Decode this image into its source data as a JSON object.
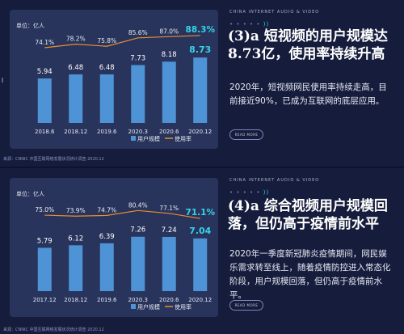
{
  "panels": [
    {
      "tiny_label": "CHINA INTERNET AUDIO & VIDEO",
      "heading": "(3)a 短视频的用户规模达8.73亿，使用率持续升高",
      "description": "2020年，短视频网民使用率持续走高，目前接近90%，已成为互联网的底层应用。",
      "button": "READ MORE",
      "source": "来源：CNNIC 中国互联网络发展状况统计调查 2020.12"
    },
    {
      "tiny_label": "CHINA INTERNET AUDIO & VIDEO",
      "heading": "(4)a 综合视频用户规模回落，但仍高于疫情前水平",
      "description": "2020年一季度新冠肺炎疫情期间，网民娱乐需求转至线上，随着疫情防控进入常态化阶段，用户规模回落，但仍高于疫情前水平。",
      "button": "READ MORE",
      "source": "来源：CNNIC 中国互联网络发展状况统计调查 2020.12"
    }
  ],
  "chart_data": [
    {
      "type": "bar",
      "unit_label": "单位：亿人",
      "categories": [
        "2018.6",
        "2018.12",
        "2019.6",
        "2020.3",
        "2020.6",
        "2020.12"
      ],
      "series": [
        {
          "name": "用户规模",
          "type": "bar",
          "values": [
            5.94,
            6.48,
            6.48,
            7.73,
            8.18,
            8.73
          ],
          "labels": [
            "5.94",
            "6.48",
            "6.48",
            "7.73",
            "8.18",
            "8.73"
          ]
        },
        {
          "name": "使用率",
          "type": "line",
          "values": [
            74.1,
            78.2,
            75.8,
            85.6,
            87.0,
            88.3
          ],
          "labels": [
            "74.1%",
            "78.2%",
            "75.8%",
            "85.6%",
            "87.0%",
            "88.3%"
          ]
        }
      ],
      "ylim": [
        0,
        9.5
      ],
      "line_ylim": [
        60,
        92
      ],
      "legend": "bottom-right",
      "colors": {
        "bar": "#4d93d6",
        "line": "#e88f2e",
        "highlight": "#35d3e8"
      }
    },
    {
      "type": "bar",
      "unit_label": "单位：亿人",
      "categories": [
        "2017.12",
        "2018.12",
        "2019.6",
        "2020.3",
        "2020.6",
        "2020.12"
      ],
      "series": [
        {
          "name": "用户规模",
          "type": "bar",
          "values": [
            5.79,
            6.12,
            6.39,
            7.26,
            7.24,
            7.04
          ],
          "labels": [
            "5.79",
            "6.12",
            "6.39",
            "7.26",
            "7.24",
            "7.04"
          ]
        },
        {
          "name": "使用率",
          "type": "line",
          "values": [
            75.0,
            73.9,
            74.7,
            80.4,
            77.1,
            71.1
          ],
          "labels": [
            "75.0%",
            "73.9%",
            "74.7%",
            "80.4%",
            "77.1%",
            "71.1%"
          ]
        }
      ],
      "ylim": [
        0,
        9.5
      ],
      "line_ylim": [
        60,
        92
      ],
      "legend": "bottom-right",
      "colors": {
        "bar": "#4d93d6",
        "line": "#e88f2e",
        "highlight": "#35d3e8"
      }
    }
  ]
}
